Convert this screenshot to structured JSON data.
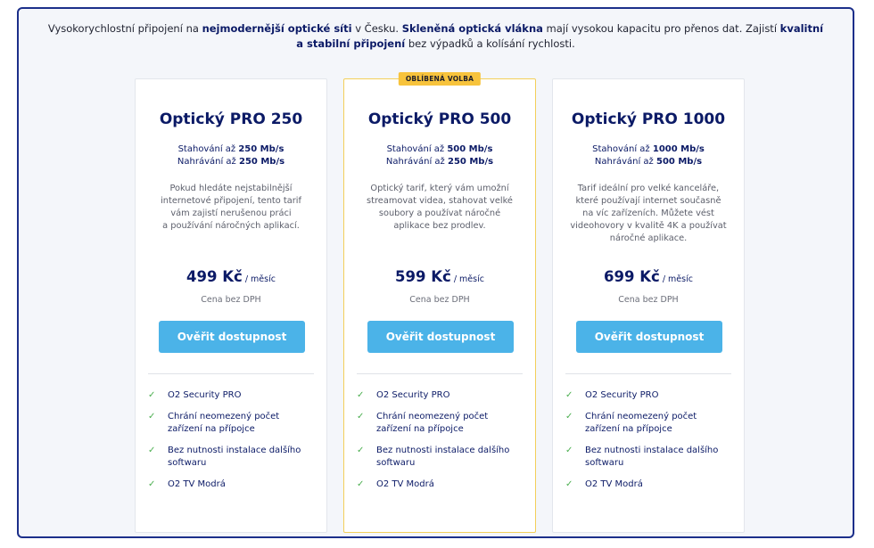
{
  "intro": {
    "t1": "Vysokorychlostní připojení na ",
    "b1": "nejmodernější optické síti",
    "t2": " v Česku. ",
    "b2": "Skleněná optická vlákna",
    "t3": " mají vysokou kapacitu pro přenos dat. Zajistí ",
    "b3": "kvalitní a stabilní připojení",
    "t4": " bez výpadků a kolísání rychlosti."
  },
  "plans": [
    {
      "title": "Optický PRO 250",
      "download_label": "Stahování až ",
      "download_value": "250 Mb/s",
      "upload_label": "Nahrávání až ",
      "upload_value": "250 Mb/s",
      "desc_lines": [
        "Pokud hledáte nejstabilnější",
        "internetové připojení, tento tarif",
        "vám zajistí nerušenou práci",
        "a používání náročných aplikací."
      ],
      "price": "499 Kč",
      "price_unit": " / měsíc",
      "vat": "Cena bez DPH",
      "button": "Ověřit dostupnost"
    },
    {
      "badge": "OBLÍBENÁ VOLBA",
      "title": "Optický PRO 500",
      "download_label": "Stahování až ",
      "download_value": "500 Mb/s",
      "upload_label": "Nahrávání až ",
      "upload_value": "250 Mb/s",
      "desc_lines": [
        "Optický tarif, který vám umožní",
        "streamovat videa, stahovat velké",
        "soubory a používat náročné",
        "aplikace bez prodlev."
      ],
      "price": "599 Kč",
      "price_unit": " / měsíc",
      "vat": "Cena bez DPH",
      "button": "Ověřit dostupnost"
    },
    {
      "title": "Optický PRO 1000",
      "download_label": "Stahování až ",
      "download_value": "1000 Mb/s",
      "upload_label": "Nahrávání až ",
      "upload_value": "500 Mb/s",
      "desc_lines": [
        "Tarif ideální pro velké kanceláře,",
        "které používají internet současně",
        "na víc zařízeních. Můžete vést",
        "videohovory v kvalitě 4K a používat",
        "náročné aplikace."
      ],
      "price": "699 Kč",
      "price_unit": " / měsíc",
      "vat": "Cena bez DPH",
      "button": "Ověřit dostupnost"
    }
  ],
  "features": [
    [
      "O2 Security PRO"
    ],
    [
      "Chrání neomezený počet",
      "zařízení na přípojce"
    ],
    [
      "Bez nutnosti instalace dalšího",
      "softwaru"
    ],
    [
      "O2 TV Modrá"
    ]
  ],
  "icons": {
    "feature": "check-icon"
  },
  "colors": {
    "brand": "#0b1a66",
    "button": "#4bb3e8",
    "badge": "#f7c33c",
    "check": "#4caf50"
  }
}
